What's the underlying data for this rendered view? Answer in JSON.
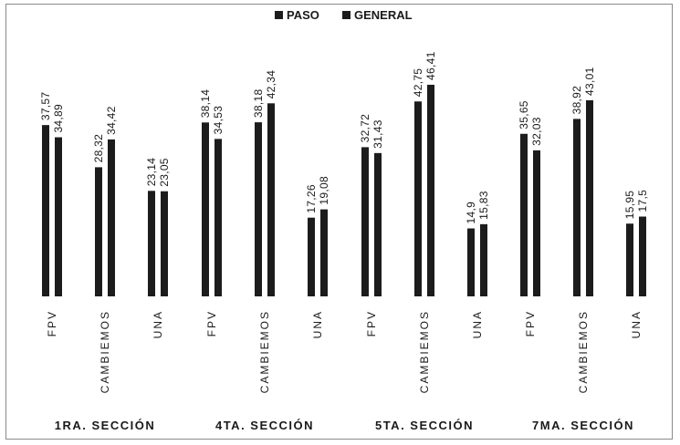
{
  "chart_data": {
    "type": "bar",
    "title": "",
    "xlabel": "",
    "ylabel": "",
    "ylim": [
      0,
      50
    ],
    "grid": false,
    "legend_position": "top-center",
    "colors": {
      "bar": "#1c1c1c",
      "text": "#1a1a1a",
      "frame": "#8a8a8a"
    },
    "legend": [
      "PASO",
      "GENERAL"
    ],
    "sections": [
      "1RA. SECCIÓN",
      "4TA. SECCIÓN",
      "5TA. SECCIÓN",
      "7MA. SECCIÓN"
    ],
    "parties": [
      "FPV",
      "CAMBIEMOS",
      "UNA"
    ],
    "groups": [
      {
        "section": "1RA. SECCIÓN",
        "bars": [
          {
            "party": "FPV",
            "values": [
              37.57,
              34.89
            ],
            "labels": [
              "37,57",
              "34,89"
            ]
          },
          {
            "party": "CAMBIEMOS",
            "values": [
              28.32,
              34.42
            ],
            "labels": [
              "28,32",
              "34,42"
            ]
          },
          {
            "party": "UNA",
            "values": [
              23.14,
              23.05
            ],
            "labels": [
              "23,14",
              "23,05"
            ]
          }
        ]
      },
      {
        "section": "4TA. SECCIÓN",
        "bars": [
          {
            "party": "FPV",
            "values": [
              38.14,
              34.53
            ],
            "labels": [
              "38,14",
              "34,53"
            ]
          },
          {
            "party": "CAMBIEMOS",
            "values": [
              38.18,
              42.34
            ],
            "labels": [
              "38,18",
              "42,34"
            ]
          },
          {
            "party": "UNA",
            "values": [
              17.26,
              19.08
            ],
            "labels": [
              "17,26",
              "19,08"
            ]
          }
        ]
      },
      {
        "section": "5TA. SECCIÓN",
        "bars": [
          {
            "party": "FPV",
            "values": [
              32.72,
              31.43
            ],
            "labels": [
              "32,72",
              "31,43"
            ]
          },
          {
            "party": "CAMBIEMOS",
            "values": [
              42.75,
              46.41
            ],
            "labels": [
              "42,75",
              "46,41"
            ]
          },
          {
            "party": "UNA",
            "values": [
              14.9,
              15.83
            ],
            "labels": [
              "14,9",
              "15,83"
            ]
          }
        ]
      },
      {
        "section": "7MA. SECCIÓN",
        "bars": [
          {
            "party": "FPV",
            "values": [
              35.65,
              32.03
            ],
            "labels": [
              "35,65",
              "32,03"
            ]
          },
          {
            "party": "CAMBIEMOS",
            "values": [
              38.92,
              43.01
            ],
            "labels": [
              "38,92",
              "43,01"
            ]
          },
          {
            "party": "UNA",
            "values": [
              15.95,
              17.5
            ],
            "labels": [
              "15,95",
              "17,5"
            ]
          }
        ]
      }
    ]
  }
}
